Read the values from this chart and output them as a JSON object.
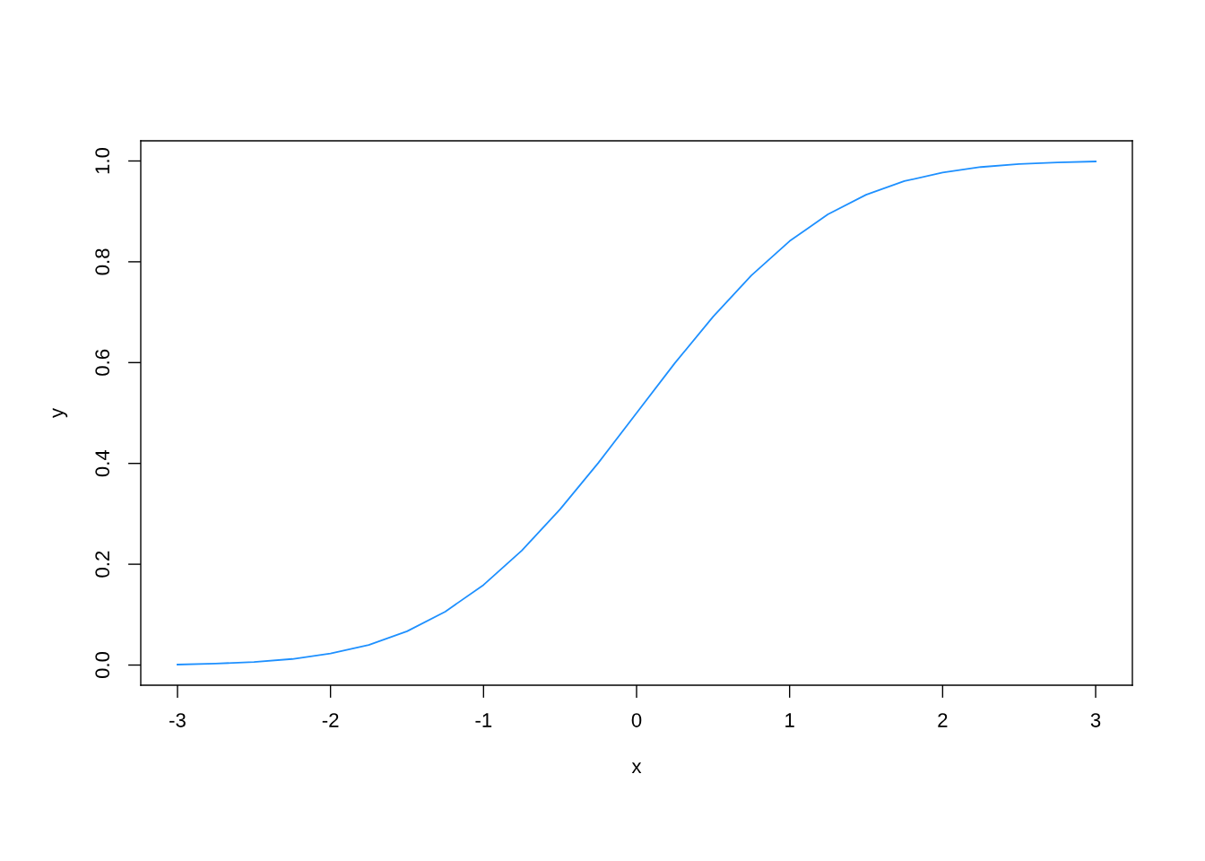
{
  "chart_data": {
    "type": "line",
    "xlabel": "x",
    "ylabel": "y",
    "x": [
      -3,
      -2.75,
      -2.5,
      -2.25,
      -2,
      -1.75,
      -1.5,
      -1.25,
      -1,
      -0.75,
      -0.5,
      -0.25,
      0,
      0.25,
      0.5,
      0.75,
      1,
      1.25,
      1.5,
      1.75,
      2,
      2.25,
      2.5,
      2.75,
      3
    ],
    "series": [
      {
        "color": "#1e90ff",
        "values": [
          0.001,
          0.003,
          0.006,
          0.012,
          0.023,
          0.04,
          0.067,
          0.106,
          0.159,
          0.227,
          0.309,
          0.401,
          0.5,
          0.599,
          0.691,
          0.773,
          0.841,
          0.894,
          0.933,
          0.96,
          0.977,
          0.988,
          0.994,
          0.997,
          0.999
        ]
      }
    ],
    "xlim": [
      -3.24,
      3.24
    ],
    "ylim": [
      -0.04,
      1.04
    ],
    "xticks": [
      -3,
      -2,
      -1,
      0,
      1,
      2,
      3
    ],
    "yticks": [
      {
        "value": 0,
        "label": "0.0"
      },
      {
        "value": 0.2,
        "label": "0.2"
      },
      {
        "value": 0.4,
        "label": "0.4"
      },
      {
        "value": 0.6,
        "label": "0.6"
      },
      {
        "value": 0.8,
        "label": "0.8"
      },
      {
        "value": 1,
        "label": "1.0"
      }
    ],
    "grid": false,
    "legend": false
  }
}
